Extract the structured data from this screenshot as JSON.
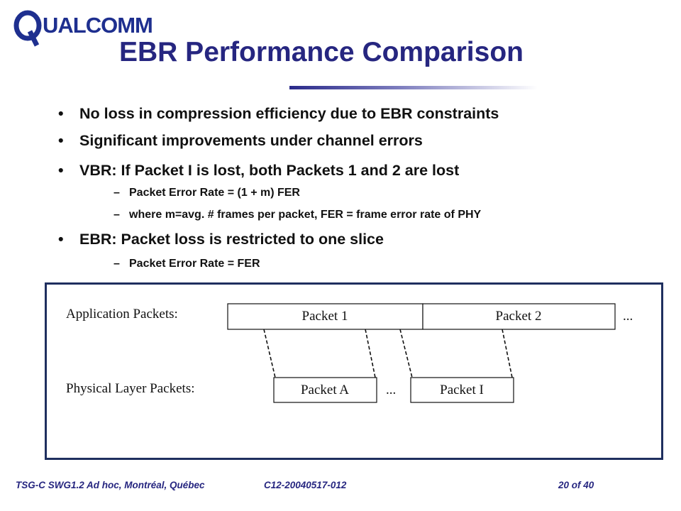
{
  "logo_text": "QUALCOMM",
  "title": "EBR Performance Comparison",
  "bullets": [
    {
      "text": "No loss in compression efficiency due to EBR constraints"
    },
    {
      "text": "Significant improvements under channel errors"
    },
    {
      "text": "VBR: If Packet I is lost, both Packets 1 and 2 are lost",
      "subs": [
        "Packet Error Rate = (1 + m) FER",
        "where m=avg. # frames per packet, FER = frame error rate of PHY"
      ]
    },
    {
      "text": "EBR: Packet loss is restricted to one slice",
      "subs": [
        "Packet Error Rate = FER"
      ]
    }
  ],
  "diagram": {
    "app_label": "Application Packets:",
    "phy_label": "Physical Layer Packets:",
    "packet1": "Packet 1",
    "packet2": "Packet 2",
    "packetA": "Packet A",
    "packetI": "Packet I",
    "ellipsis": "..."
  },
  "footer": {
    "left": "TSG-C SWG1.2 Ad hoc, Montréal, Québec",
    "center": "C12-20040517-012",
    "right": "20 of 40"
  },
  "colors": {
    "title": "#262680",
    "frame": "#1f2f5f"
  }
}
